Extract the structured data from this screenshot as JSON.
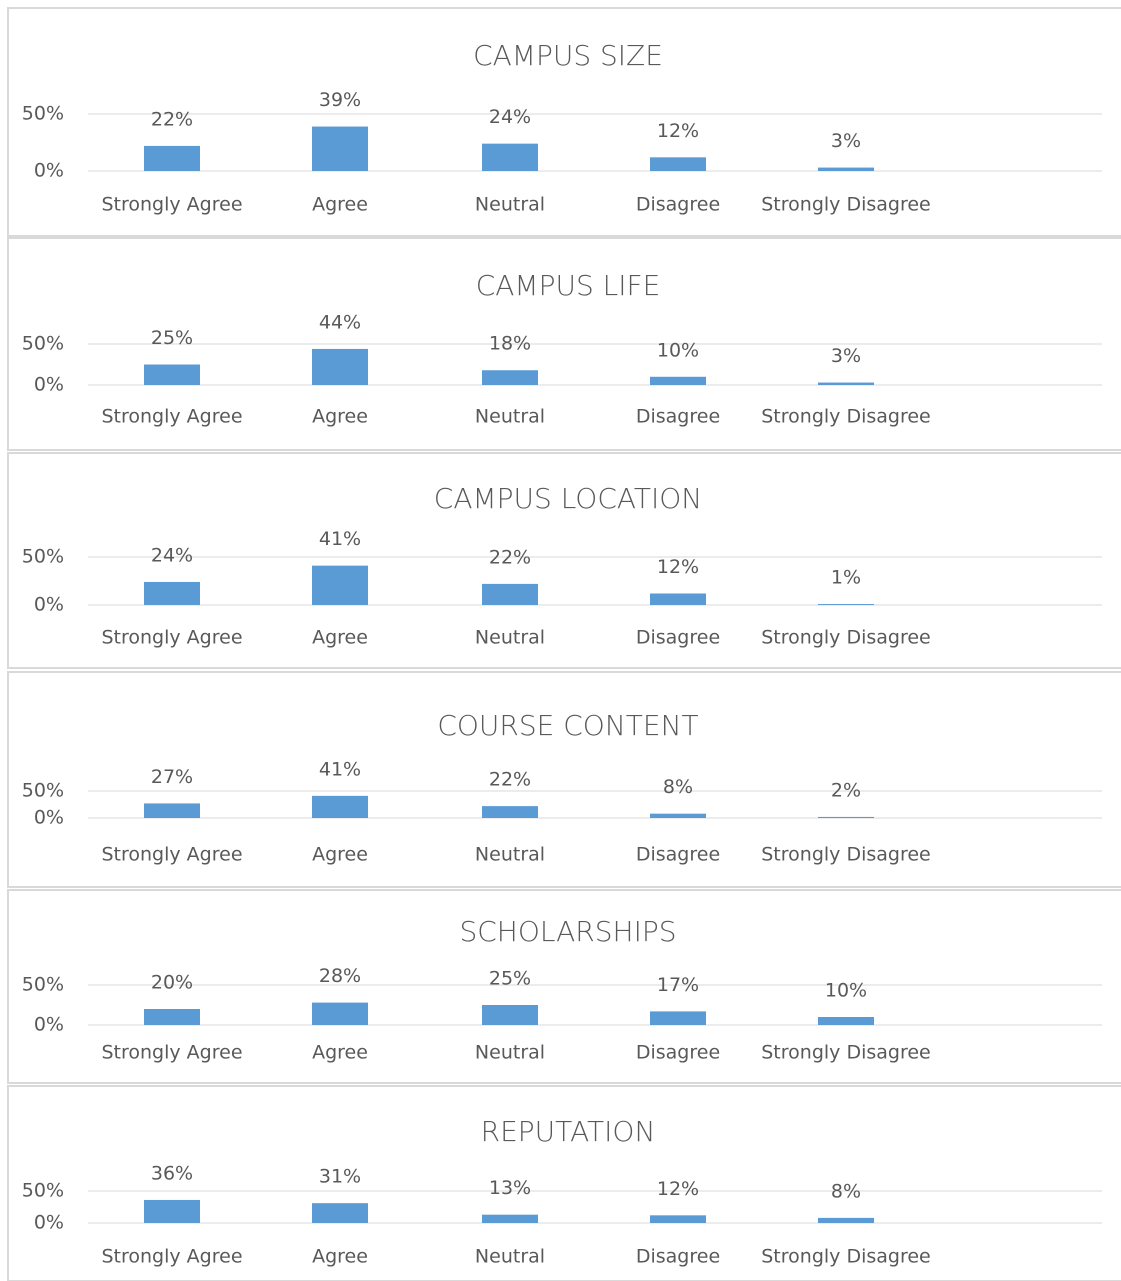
{
  "chart_data": [
    {
      "type": "bar",
      "title": "CAMPUS SIZE",
      "categories": [
        "Strongly Agree",
        "Agree",
        "Neutral",
        "Disagree",
        "Strongly Disagree"
      ],
      "values": [
        22,
        39,
        24,
        12,
        3
      ],
      "value_labels": [
        "22%",
        "39%",
        "24%",
        "12%",
        "3%"
      ],
      "color": "#5b9bd5",
      "ylim": [
        0,
        50
      ],
      "yticks": [
        {
          "value": 0,
          "label": "0%"
        },
        {
          "value": 50,
          "label": "50%"
        }
      ],
      "grid": true
    },
    {
      "type": "bar",
      "title": "CAMPUS LIFE",
      "categories": [
        "Strongly Agree",
        "Agree",
        "Neutral",
        "Disagree",
        "Strongly Disagree"
      ],
      "values": [
        25,
        44,
        18,
        10,
        3
      ],
      "value_labels": [
        "25%",
        "44%",
        "18%",
        "10%",
        "3%"
      ],
      "color": "#5b9bd5",
      "ylim": [
        0,
        50
      ],
      "yticks": [
        {
          "value": 0,
          "label": "0%"
        },
        {
          "value": 50,
          "label": "50%"
        }
      ],
      "grid": true
    },
    {
      "type": "bar",
      "title": "CAMPUS LOCATION",
      "categories": [
        "Strongly Agree",
        "Agree",
        "Neutral",
        "Disagree",
        "Strongly Disagree"
      ],
      "values": [
        24,
        41,
        22,
        12,
        1
      ],
      "value_labels": [
        "24%",
        "41%",
        "22%",
        "12%",
        "1%"
      ],
      "color": "#5b9bd5",
      "ylim": [
        0,
        50
      ],
      "yticks": [
        {
          "value": 0,
          "label": "0%"
        },
        {
          "value": 50,
          "label": "50%"
        }
      ],
      "grid": true
    },
    {
      "type": "bar",
      "title": "COURSE CONTENT",
      "categories": [
        "Strongly Agree",
        "Agree",
        "Neutral",
        "Disagree",
        "Strongly Disagree"
      ],
      "values": [
        27,
        41,
        22,
        8,
        2
      ],
      "value_labels": [
        "27%",
        "41%",
        "22%",
        "8%",
        "2%"
      ],
      "color": "#5b9bd5",
      "ylim": [
        0,
        50
      ],
      "yticks": [
        {
          "value": 0,
          "label": "0%"
        },
        {
          "value": 50,
          "label": "50%"
        }
      ],
      "grid": true
    },
    {
      "type": "bar",
      "title": "SCHOLARSHIPS",
      "categories": [
        "Strongly Agree",
        "Agree",
        "Neutral",
        "Disagree",
        "Strongly Disagree"
      ],
      "values": [
        20,
        28,
        25,
        17,
        10
      ],
      "value_labels": [
        "20%",
        "28%",
        "25%",
        "17%",
        "10%"
      ],
      "color": "#5b9bd5",
      "ylim": [
        0,
        50
      ],
      "yticks": [
        {
          "value": 0,
          "label": "0%"
        },
        {
          "value": 50,
          "label": "50%"
        }
      ],
      "grid": true
    },
    {
      "type": "bar",
      "title": "REPUTATION",
      "categories": [
        "Strongly Agree",
        "Agree",
        "Neutral",
        "Disagree",
        "Strongly Disagree"
      ],
      "values": [
        36,
        31,
        13,
        12,
        8
      ],
      "value_labels": [
        "36%",
        "31%",
        "13%",
        "12%",
        "8%"
      ],
      "color": "#5b9bd5",
      "ylim": [
        0,
        50
      ],
      "yticks": [
        {
          "value": 0,
          "label": "0%"
        },
        {
          "value": 50,
          "label": "50%"
        }
      ],
      "grid": true
    }
  ]
}
